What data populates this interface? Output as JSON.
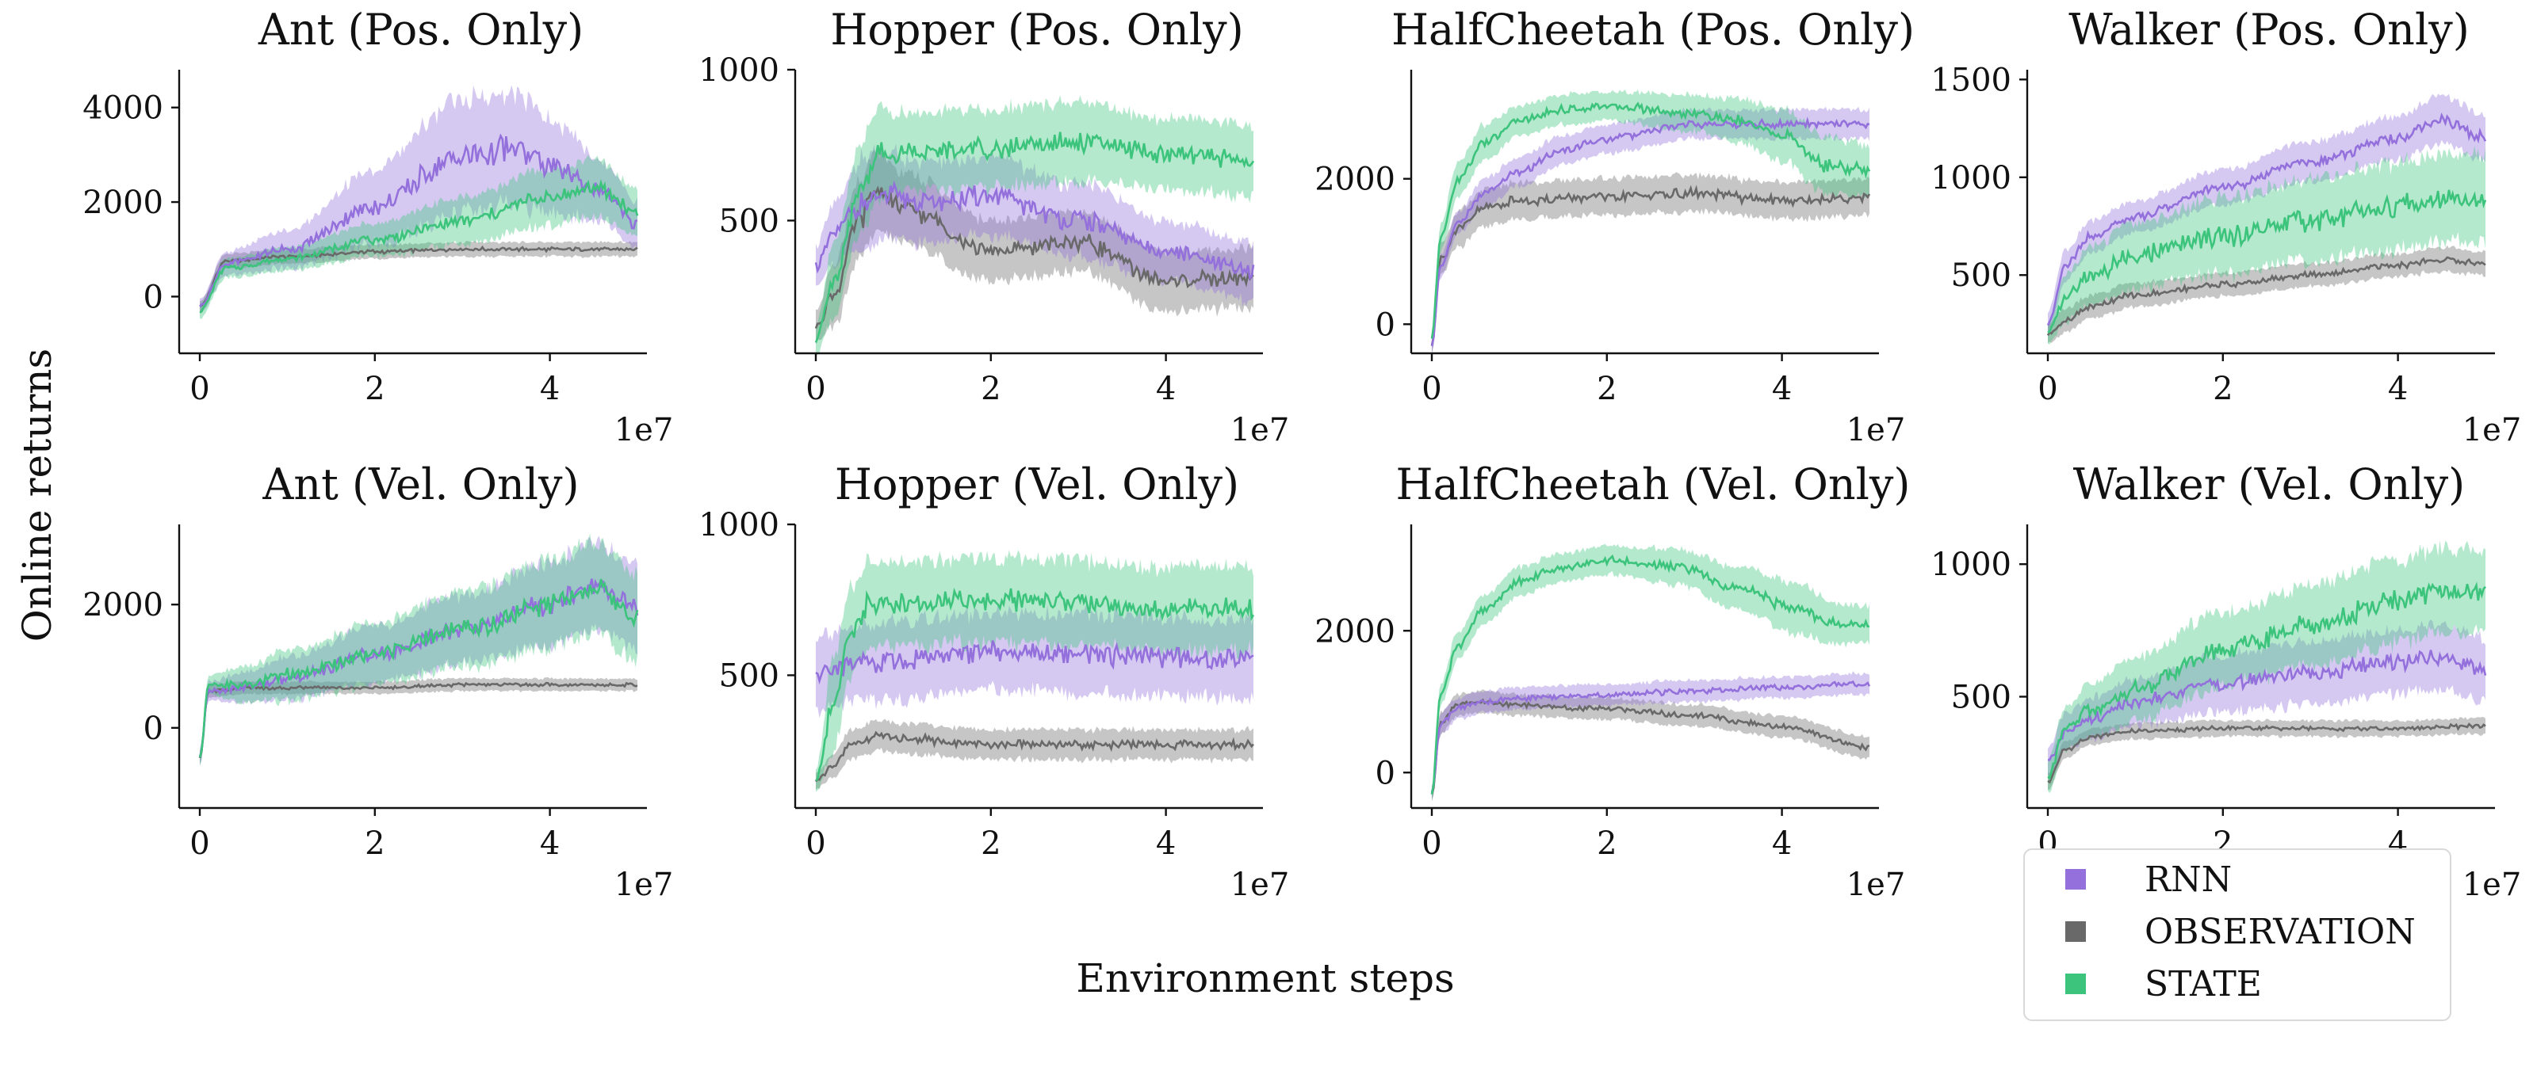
{
  "figure": {
    "ylabel": "Online returns",
    "xlabel": "Environment steps",
    "x_multiplier": "1e7"
  },
  "legend": {
    "placement": "lower-right",
    "items": [
      {
        "label": "RNN",
        "color": "#9370DB"
      },
      {
        "label": "OBSERVATION",
        "color": "#696969"
      },
      {
        "label": "STATE",
        "color": "#3CC47C"
      }
    ]
  },
  "chart_data": [
    {
      "type": "line",
      "title": "Ant (Pos. Only)",
      "xlabel": "",
      "ylabel": "",
      "xlim": [
        0,
        50000000
      ],
      "ylim": [
        -1200,
        4800
      ],
      "xticks": [
        0,
        2,
        4
      ],
      "yticks": [
        0,
        2000,
        4000
      ],
      "series": [
        {
          "name": "RNN",
          "x": [
            0,
            3000000,
            10000000,
            20000000,
            30000000,
            36000000,
            42000000,
            46000000,
            50000000
          ],
          "y": [
            -200,
            700,
            1000,
            1900,
            3000,
            3100,
            2600,
            2200,
            1500
          ],
          "spread": [
            150,
            250,
            400,
            800,
            1200,
            1200,
            900,
            600,
            500
          ]
        },
        {
          "name": "OBSERVATION",
          "x": [
            0,
            3000000,
            10000000,
            20000000,
            30000000,
            40000000,
            50000000
          ],
          "y": [
            -200,
            750,
            850,
            950,
            1000,
            1000,
            1000
          ],
          "spread": [
            120,
            150,
            150,
            150,
            150,
            150,
            150
          ]
        },
        {
          "name": "STATE",
          "x": [
            0,
            3000000,
            10000000,
            20000000,
            30000000,
            40000000,
            45000000,
            50000000
          ],
          "y": [
            -300,
            600,
            800,
            1200,
            1600,
            2100,
            2300,
            1800
          ],
          "spread": [
            150,
            200,
            250,
            350,
            500,
            600,
            600,
            500
          ]
        }
      ]
    },
    {
      "type": "line",
      "title": "Hopper (Pos. Only)",
      "xlabel": "",
      "ylabel": "",
      "xlim": [
        0,
        50000000
      ],
      "ylim": [
        60,
        1000
      ],
      "xticks": [
        0,
        2,
        4
      ],
      "yticks": [
        500,
        1000
      ],
      "series": [
        {
          "name": "RNN",
          "x": [
            0,
            2000000,
            5000000,
            8000000,
            12000000,
            20000000,
            30000000,
            40000000,
            50000000
          ],
          "y": [
            350,
            450,
            550,
            580,
            560,
            580,
            500,
            400,
            330
          ],
          "spread": [
            60,
            100,
            150,
            150,
            130,
            130,
            120,
            100,
            100
          ]
        },
        {
          "name": "OBSERVATION",
          "x": [
            0,
            2000000,
            5000000,
            7000000,
            10000000,
            20000000,
            30000000,
            40000000,
            50000000
          ],
          "y": [
            150,
            250,
            500,
            600,
            540,
            400,
            430,
            300,
            310
          ],
          "spread": [
            50,
            100,
            130,
            130,
            120,
            100,
            100,
            100,
            100
          ]
        },
        {
          "name": "STATE",
          "x": [
            0,
            2000000,
            5000000,
            7000000,
            10000000,
            20000000,
            30000000,
            40000000,
            50000000
          ],
          "y": [
            100,
            300,
            600,
            720,
            730,
            740,
            760,
            720,
            700
          ],
          "spread": [
            50,
            120,
            150,
            150,
            130,
            130,
            130,
            120,
            120
          ]
        }
      ]
    },
    {
      "type": "line",
      "title": "HalfCheetah (Pos. Only)",
      "xlabel": "",
      "ylabel": "",
      "xlim": [
        0,
        50000000
      ],
      "ylim": [
        -400,
        3500
      ],
      "xticks": [
        0,
        2,
        4
      ],
      "yticks": [
        0,
        2000
      ],
      "series": [
        {
          "name": "RNN",
          "x": [
            0,
            1000000,
            3000000,
            6000000,
            10000000,
            15000000,
            20000000,
            30000000,
            40000000,
            50000000
          ],
          "y": [
            -300,
            800,
            1400,
            1800,
            2100,
            2400,
            2550,
            2750,
            2750,
            2750
          ],
          "spread": [
            100,
            150,
            150,
            200,
            200,
            200,
            200,
            200,
            200,
            200
          ]
        },
        {
          "name": "OBSERVATION",
          "x": [
            0,
            1000000,
            3000000,
            6000000,
            10000000,
            20000000,
            30000000,
            40000000,
            50000000
          ],
          "y": [
            -300,
            900,
            1300,
            1600,
            1700,
            1750,
            1800,
            1700,
            1750
          ],
          "spread": [
            100,
            200,
            250,
            250,
            250,
            250,
            250,
            250,
            250
          ]
        },
        {
          "name": "STATE",
          "x": [
            0,
            1000000,
            3000000,
            6000000,
            10000000,
            15000000,
            20000000,
            30000000,
            35000000,
            40000000,
            45000000,
            50000000
          ],
          "y": [
            -200,
            1200,
            2000,
            2500,
            2800,
            2950,
            3000,
            2900,
            2800,
            2600,
            2200,
            2100
          ],
          "spread": [
            100,
            200,
            250,
            250,
            200,
            200,
            200,
            250,
            300,
            350,
            400,
            350
          ]
        }
      ]
    },
    {
      "type": "line",
      "title": "Walker (Pos. Only)",
      "xlabel": "",
      "ylabel": "",
      "xlim": [
        0,
        50000000
      ],
      "ylim": [
        100,
        1550
      ],
      "xticks": [
        0,
        2,
        4
      ],
      "yticks": [
        500,
        1000,
        1500
      ],
      "series": [
        {
          "name": "RNN",
          "x": [
            0,
            2000000,
            5000000,
            10000000,
            20000000,
            30000000,
            40000000,
            45000000,
            50000000
          ],
          "y": [
            250,
            550,
            700,
            800,
            950,
            1080,
            1200,
            1300,
            1200
          ],
          "spread": [
            60,
            80,
            80,
            80,
            90,
            100,
            110,
            120,
            120
          ]
        },
        {
          "name": "OBSERVATION",
          "x": [
            0,
            2000000,
            5000000,
            10000000,
            20000000,
            30000000,
            40000000,
            45000000,
            50000000
          ],
          "y": [
            200,
            270,
            340,
            400,
            450,
            500,
            550,
            580,
            560
          ],
          "spread": [
            50,
            60,
            60,
            60,
            60,
            60,
            60,
            60,
            60
          ]
        },
        {
          "name": "STATE",
          "x": [
            0,
            2000000,
            5000000,
            10000000,
            20000000,
            30000000,
            40000000,
            45000000,
            50000000
          ],
          "y": [
            200,
            380,
            500,
            600,
            700,
            780,
            850,
            900,
            900
          ],
          "spread": [
            60,
            120,
            150,
            170,
            190,
            210,
            220,
            220,
            220
          ]
        }
      ]
    },
    {
      "type": "line",
      "title": "Ant (Vel. Only)",
      "xlabel": "",
      "ylabel": "",
      "xlim": [
        0,
        50000000
      ],
      "ylim": [
        -1300,
        3300
      ],
      "xticks": [
        0,
        2,
        4
      ],
      "yticks": [
        0,
        2000
      ],
      "series": [
        {
          "name": "RNN",
          "x": [
            0,
            1000000,
            5000000,
            10000000,
            20000000,
            30000000,
            40000000,
            45000000,
            50000000
          ],
          "y": [
            -500,
            600,
            650,
            800,
            1200,
            1600,
            2000,
            2300,
            2000
          ],
          "spread": [
            150,
            150,
            250,
            350,
            450,
            550,
            650,
            700,
            700
          ]
        },
        {
          "name": "OBSERVATION",
          "x": [
            0,
            1000000,
            5000000,
            10000000,
            20000000,
            30000000,
            40000000,
            50000000
          ],
          "y": [
            -500,
            600,
            650,
            650,
            650,
            700,
            700,
            700
          ],
          "spread": [
            100,
            100,
            100,
            100,
            100,
            100,
            100,
            100
          ]
        },
        {
          "name": "STATE",
          "x": [
            0,
            1000000,
            5000000,
            10000000,
            20000000,
            30000000,
            40000000,
            45000000,
            50000000
          ],
          "y": [
            -500,
            700,
            700,
            850,
            1200,
            1600,
            2000,
            2300,
            1800
          ],
          "spread": [
            150,
            150,
            300,
            400,
            500,
            600,
            700,
            750,
            700
          ]
        }
      ]
    },
    {
      "type": "line",
      "title": "Hopper (Vel. Only)",
      "xlabel": "",
      "ylabel": "",
      "xlim": [
        0,
        50000000
      ],
      "ylim": [
        60,
        1000
      ],
      "xticks": [
        0,
        2,
        4
      ],
      "yticks": [
        500,
        1000
      ],
      "series": [
        {
          "name": "RNN",
          "x": [
            0,
            2000000,
            5000000,
            10000000,
            20000000,
            25000000,
            30000000,
            40000000,
            50000000
          ],
          "y": [
            500,
            520,
            540,
            550,
            580,
            580,
            570,
            560,
            550
          ],
          "spread": [
            120,
            120,
            120,
            130,
            130,
            130,
            130,
            130,
            130
          ]
        },
        {
          "name": "OBSERVATION",
          "x": [
            0,
            2000000,
            4000000,
            7000000,
            10000000,
            20000000,
            30000000,
            40000000,
            50000000
          ],
          "y": [
            150,
            200,
            270,
            300,
            290,
            270,
            270,
            270,
            270
          ],
          "spread": [
            30,
            40,
            50,
            50,
            50,
            50,
            50,
            50,
            50
          ]
        },
        {
          "name": "STATE",
          "x": [
            0,
            2000000,
            4000000,
            6000000,
            10000000,
            20000000,
            30000000,
            40000000,
            50000000
          ],
          "y": [
            150,
            400,
            650,
            730,
            740,
            750,
            740,
            720,
            720
          ],
          "spread": [
            40,
            150,
            150,
            150,
            140,
            140,
            140,
            140,
            140
          ]
        }
      ]
    },
    {
      "type": "line",
      "title": "HalfCheetah (Vel. Only)",
      "xlabel": "",
      "ylabel": "",
      "xlim": [
        0,
        50000000
      ],
      "ylim": [
        -500,
        3500
      ],
      "xticks": [
        0,
        2,
        4
      ],
      "yticks": [
        0,
        2000
      ],
      "series": [
        {
          "name": "RNN",
          "x": [
            0,
            1000000,
            3000000,
            6000000,
            10000000,
            20000000,
            30000000,
            40000000,
            50000000
          ],
          "y": [
            -300,
            700,
            900,
            1000,
            1050,
            1100,
            1150,
            1200,
            1250
          ],
          "spread": [
            100,
            150,
            150,
            150,
            150,
            150,
            150,
            150,
            150
          ]
        },
        {
          "name": "OBSERVATION",
          "x": [
            0,
            1000000,
            3000000,
            6000000,
            10000000,
            20000000,
            30000000,
            40000000,
            50000000
          ],
          "y": [
            -300,
            700,
            950,
            1000,
            950,
            900,
            800,
            650,
            350
          ],
          "spread": [
            100,
            150,
            150,
            150,
            150,
            150,
            150,
            150,
            150
          ]
        },
        {
          "name": "STATE",
          "x": [
            0,
            1000000,
            3000000,
            6000000,
            10000000,
            15000000,
            20000000,
            28000000,
            35000000,
            42000000,
            46000000,
            50000000
          ],
          "y": [
            -300,
            1100,
            1800,
            2300,
            2700,
            2900,
            3000,
            2900,
            2600,
            2300,
            2100,
            2100
          ],
          "spread": [
            100,
            150,
            200,
            200,
            200,
            200,
            200,
            250,
            300,
            350,
            300,
            250
          ]
        }
      ]
    },
    {
      "type": "line",
      "title": "Walker (Vel. Only)",
      "xlabel": "",
      "ylabel": "",
      "xlim": [
        0,
        50000000
      ],
      "ylim": [
        80,
        1150
      ],
      "xticks": [
        0,
        2,
        4
      ],
      "yticks": [
        500,
        1000
      ],
      "series": [
        {
          "name": "RNN",
          "x": [
            0,
            2000000,
            5000000,
            10000000,
            20000000,
            30000000,
            40000000,
            45000000,
            50000000
          ],
          "y": [
            250,
            370,
            420,
            480,
            550,
            590,
            630,
            650,
            600
          ],
          "spread": [
            50,
            70,
            80,
            90,
            110,
            120,
            120,
            120,
            120
          ]
        },
        {
          "name": "OBSERVATION",
          "x": [
            0,
            2000000,
            5000000,
            10000000,
            20000000,
            30000000,
            40000000,
            50000000
          ],
          "y": [
            180,
            300,
            350,
            370,
            380,
            380,
            380,
            390
          ],
          "spread": [
            30,
            30,
            30,
            30,
            30,
            30,
            30,
            30
          ]
        },
        {
          "name": "STATE",
          "x": [
            0,
            2000000,
            5000000,
            10000000,
            20000000,
            30000000,
            40000000,
            45000000,
            50000000
          ],
          "y": [
            200,
            380,
            450,
            530,
            680,
            770,
            860,
            900,
            900
          ],
          "spread": [
            60,
            80,
            100,
            120,
            140,
            150,
            160,
            160,
            160
          ]
        }
      ]
    }
  ]
}
